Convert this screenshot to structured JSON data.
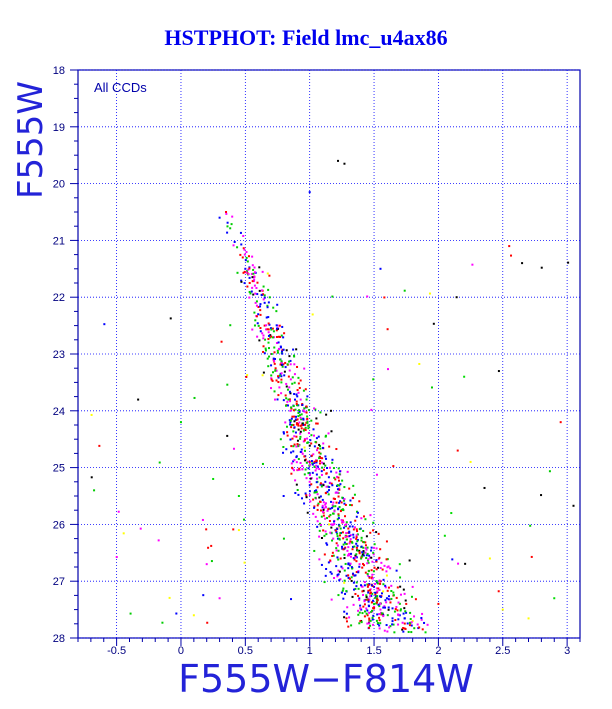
{
  "chart_data": {
    "type": "scatter",
    "title": "HSTPHOT: Field lmc_u4ax86",
    "xlabel": "F555W−F814W",
    "ylabel": "F555W",
    "xlim": [
      -0.8,
      3.1
    ],
    "ylim": [
      28,
      18
    ],
    "y_inverted": true,
    "x_ticks": [
      "-0.5",
      "0",
      "0.5",
      "1",
      "1.5",
      "2",
      "2.5",
      "3"
    ],
    "y_ticks": [
      "18",
      "19",
      "20",
      "21",
      "22",
      "23",
      "24",
      "25",
      "26",
      "27",
      "28"
    ],
    "annotation": "All CCDs",
    "grid": true,
    "series": [
      {
        "color": "#0000ff",
        "points": [
          [
            0.95,
            24.0
          ],
          [
            1.0,
            25.1
          ],
          [
            1.05,
            25.4
          ],
          [
            0.6,
            22.3
          ],
          [
            0.7,
            23.2
          ],
          [
            0.8,
            24.4
          ],
          [
            1.3,
            26.7
          ],
          [
            1.5,
            27.1
          ],
          [
            1.4,
            27.5
          ],
          [
            0.5,
            21.5
          ],
          [
            0.55,
            21.9
          ],
          [
            0.62,
            22.6
          ],
          [
            0.75,
            23.8
          ],
          [
            0.85,
            24.2
          ],
          [
            1.1,
            25.7
          ],
          [
            1.2,
            26.1
          ],
          [
            1.6,
            27.3
          ],
          [
            1.0,
            20.15
          ],
          [
            0.3,
            20.6
          ],
          [
            1.55,
            21.5
          ],
          [
            0.9,
            24.8
          ],
          [
            1.25,
            27.2
          ],
          [
            1.7,
            27.6
          ]
        ]
      },
      {
        "color": "#ff0000",
        "points": [
          [
            1.08,
            25.6
          ],
          [
            0.65,
            22.5
          ],
          [
            0.72,
            23.1
          ],
          [
            0.88,
            24.3
          ],
          [
            1.35,
            26.9
          ],
          [
            1.55,
            27.0
          ],
          [
            1.45,
            27.6
          ],
          [
            0.48,
            21.3
          ],
          [
            1.0,
            24.9
          ],
          [
            1.6,
            26.3
          ],
          [
            2.55,
            21.1
          ],
          [
            2.15,
            24.7
          ],
          [
            2.0,
            27.4
          ],
          [
            0.35,
            20.5
          ],
          [
            2.95,
            24.2
          ],
          [
            0.82,
            23.9
          ],
          [
            1.18,
            26.5
          ],
          [
            1.75,
            27.4
          ],
          [
            1.3,
            27.8
          ]
        ]
      },
      {
        "color": "#00dd00",
        "points": [
          [
            1.1,
            25.3
          ],
          [
            0.68,
            22.8
          ],
          [
            0.78,
            23.5
          ],
          [
            0.92,
            24.6
          ],
          [
            1.4,
            26.4
          ],
          [
            1.65,
            27.2
          ],
          [
            1.5,
            27.4
          ],
          [
            0.52,
            21.6
          ],
          [
            1.7,
            26.7
          ],
          [
            2.2,
            23.4
          ],
          [
            2.1,
            25.8
          ],
          [
            2.05,
            26.2
          ],
          [
            0.25,
            25.2
          ],
          [
            0.45,
            25.5
          ],
          [
            0.0,
            24.2
          ],
          [
            2.9,
            27.3
          ],
          [
            1.9,
            27.9
          ],
          [
            0.98,
            24.1
          ],
          [
            1.28,
            26.2
          ]
        ]
      },
      {
        "color": "#ff00ff",
        "points": [
          [
            1.12,
            25.9
          ],
          [
            0.7,
            23.0
          ],
          [
            0.85,
            24.0
          ],
          [
            1.3,
            26.4
          ],
          [
            1.55,
            27.5
          ],
          [
            0.58,
            22.1
          ],
          [
            1.8,
            27.1
          ],
          [
            0.2,
            26.7
          ],
          [
            0.3,
            27.3
          ]
        ]
      },
      {
        "color": "#ffff00",
        "points": [
          [
            1.15,
            26.0
          ],
          [
            1.6,
            26.9
          ],
          [
            2.4,
            26.6
          ],
          [
            2.5,
            27.5
          ],
          [
            1.8,
            27.7
          ],
          [
            0.45,
            26.1
          ],
          [
            2.25,
            24.9
          ],
          [
            0.1,
            27.6
          ]
        ]
      },
      {
        "color": "#000000",
        "points": [
          [
            1.22,
            19.6
          ],
          [
            1.27,
            19.65
          ],
          [
            2.65,
            21.4
          ],
          [
            2.47,
            23.3
          ],
          [
            1.4,
            27.7
          ],
          [
            0.9,
            25.3
          ]
        ]
      }
    ]
  }
}
